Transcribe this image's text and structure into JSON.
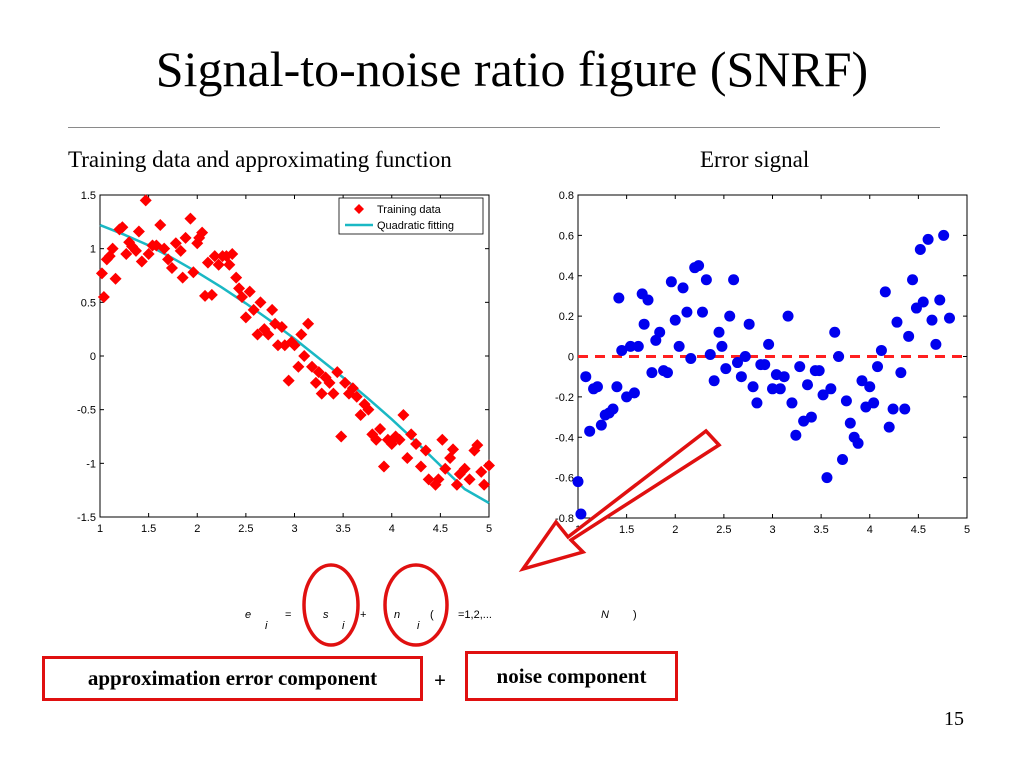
{
  "slide": {
    "title": "Signal-to-noise ratio figure (SNRF)",
    "left_subtitle": "Training data and approximating function",
    "right_subtitle": "Error signal",
    "page_number": "15"
  },
  "equation": {
    "lhs": "e",
    "lhs_sub": "i",
    "equals": "=",
    "s": "s",
    "s_sub": "i",
    "plus": "+",
    "n": "n",
    "n_sub": "i",
    "open_paren": "(",
    "index": "i",
    "range": "=1,2,...",
    "N": "N",
    "close_paren": ")"
  },
  "boxes": {
    "approx_label": "approximation error component",
    "plus": "+",
    "noise_label": "noise component"
  },
  "colors": {
    "training": "#ff0000",
    "fit": "#1ab8c4",
    "error": "#0000ee",
    "zero_line": "#ff2020",
    "annotation": "#e01010"
  },
  "chart_data": [
    {
      "type": "scatter",
      "xlim": [
        1,
        5
      ],
      "ylim": [
        -1.5,
        1.5
      ],
      "xticks": [
        "1",
        "1.5",
        "2",
        "2.5",
        "3",
        "3.5",
        "4",
        "4.5",
        "5"
      ],
      "yticks": [
        "1.5",
        "1",
        "0.5",
        "0",
        "-0.5",
        "-1",
        "-1.5"
      ],
      "legend_position": "top-right",
      "series": [
        {
          "name": "Training data",
          "marker": "diamond",
          "points": [
            [
              1.02,
              0.77
            ],
            [
              1.04,
              0.55
            ],
            [
              1.07,
              0.9
            ],
            [
              1.1,
              0.93
            ],
            [
              1.13,
              1.0
            ],
            [
              1.16,
              0.72
            ],
            [
              1.2,
              1.18
            ],
            [
              1.23,
              1.2
            ],
            [
              1.27,
              0.95
            ],
            [
              1.3,
              1.06
            ],
            [
              1.33,
              1.02
            ],
            [
              1.37,
              0.98
            ],
            [
              1.4,
              1.16
            ],
            [
              1.43,
              0.88
            ],
            [
              1.47,
              1.45
            ],
            [
              1.5,
              0.95
            ],
            [
              1.54,
              1.03
            ],
            [
              1.58,
              1.03
            ],
            [
              1.62,
              1.22
            ],
            [
              1.66,
              1.0
            ],
            [
              1.7,
              0.9
            ],
            [
              1.74,
              0.82
            ],
            [
              1.78,
              1.05
            ],
            [
              1.83,
              0.98
            ],
            [
              1.85,
              0.73
            ],
            [
              1.88,
              1.1
            ],
            [
              1.93,
              1.28
            ],
            [
              1.96,
              0.78
            ],
            [
              2.0,
              1.05
            ],
            [
              2.02,
              1.1
            ],
            [
              2.05,
              1.15
            ],
            [
              2.08,
              0.56
            ],
            [
              2.11,
              0.87
            ],
            [
              2.15,
              0.57
            ],
            [
              2.18,
              0.93
            ],
            [
              2.22,
              0.85
            ],
            [
              2.26,
              0.93
            ],
            [
              2.3,
              0.93
            ],
            [
              2.33,
              0.85
            ],
            [
              2.36,
              0.95
            ],
            [
              2.4,
              0.73
            ],
            [
              2.43,
              0.63
            ],
            [
              2.46,
              0.55
            ],
            [
              2.5,
              0.36
            ],
            [
              2.54,
              0.6
            ],
            [
              2.58,
              0.43
            ],
            [
              2.62,
              0.2
            ],
            [
              2.65,
              0.5
            ],
            [
              2.69,
              0.25
            ],
            [
              2.73,
              0.2
            ],
            [
              2.77,
              0.43
            ],
            [
              2.8,
              0.3
            ],
            [
              2.83,
              0.1
            ],
            [
              2.87,
              0.27
            ],
            [
              2.9,
              0.1
            ],
            [
              2.94,
              -0.23
            ],
            [
              2.97,
              0.13
            ],
            [
              3.0,
              0.1
            ],
            [
              3.04,
              -0.1
            ],
            [
              3.07,
              0.2
            ],
            [
              3.1,
              0.0
            ],
            [
              3.14,
              0.3
            ],
            [
              3.18,
              -0.1
            ],
            [
              3.22,
              -0.25
            ],
            [
              3.25,
              -0.15
            ],
            [
              3.28,
              -0.35
            ],
            [
              3.32,
              -0.2
            ],
            [
              3.36,
              -0.25
            ],
            [
              3.4,
              -0.35
            ],
            [
              3.44,
              -0.15
            ],
            [
              3.48,
              -0.75
            ],
            [
              3.52,
              -0.25
            ],
            [
              3.56,
              -0.35
            ],
            [
              3.6,
              -0.3
            ],
            [
              3.64,
              -0.38
            ],
            [
              3.68,
              -0.55
            ],
            [
              3.72,
              -0.45
            ],
            [
              3.76,
              -0.5
            ],
            [
              3.8,
              -0.73
            ],
            [
              3.84,
              -0.78
            ],
            [
              3.88,
              -0.68
            ],
            [
              3.92,
              -1.03
            ],
            [
              3.96,
              -0.78
            ],
            [
              4.0,
              -0.82
            ],
            [
              4.04,
              -0.75
            ],
            [
              4.08,
              -0.78
            ],
            [
              4.12,
              -0.55
            ],
            [
              4.16,
              -0.95
            ],
            [
              4.2,
              -0.73
            ],
            [
              4.25,
              -0.82
            ],
            [
              4.3,
              -1.03
            ],
            [
              4.35,
              -0.88
            ],
            [
              4.38,
              -1.15
            ],
            [
              4.45,
              -1.2
            ],
            [
              4.48,
              -1.15
            ],
            [
              4.52,
              -0.78
            ],
            [
              4.55,
              -1.05
            ],
            [
              4.6,
              -0.95
            ],
            [
              4.63,
              -0.87
            ],
            [
              4.67,
              -1.2
            ],
            [
              4.7,
              -1.1
            ],
            [
              4.75,
              -1.05
            ],
            [
              4.8,
              -1.15
            ],
            [
              4.85,
              -0.88
            ],
            [
              4.88,
              -0.83
            ],
            [
              4.92,
              -1.08
            ],
            [
              4.95,
              -1.2
            ],
            [
              5.0,
              -1.02
            ]
          ]
        },
        {
          "name": "Quadratic fitting",
          "marker": "line",
          "points": [
            [
              1,
              1.22
            ],
            [
              1.25,
              1.13
            ],
            [
              1.5,
              1.03
            ],
            [
              1.75,
              0.91
            ],
            [
              2,
              0.78
            ],
            [
              2.25,
              0.64
            ],
            [
              2.5,
              0.49
            ],
            [
              2.75,
              0.33
            ],
            [
              3,
              0.16
            ],
            [
              3.25,
              -0.02
            ],
            [
              3.5,
              -0.2
            ],
            [
              3.75,
              -0.39
            ],
            [
              4,
              -0.59
            ],
            [
              4.25,
              -0.8
            ],
            [
              4.5,
              -1.02
            ],
            [
              4.75,
              -1.24
            ],
            [
              5,
              -1.37
            ]
          ]
        }
      ]
    },
    {
      "type": "scatter",
      "xlim": [
        1,
        5
      ],
      "ylim": [
        -0.8,
        0.8
      ],
      "xticks": [
        "1",
        "1.5",
        "2",
        "2.5",
        "3",
        "3.5",
        "4",
        "4.5",
        "5"
      ],
      "yticks": [
        "0.8",
        "0.6",
        "0.4",
        "0.2",
        "0",
        "-0.2",
        "-0.4",
        "-0.6",
        "-0.8"
      ],
      "series": [
        {
          "name": "",
          "marker": "circle",
          "points": [
            [
              1.0,
              -0.62
            ],
            [
              1.03,
              -0.78
            ],
            [
              1.08,
              -0.1
            ],
            [
              1.12,
              -0.37
            ],
            [
              1.16,
              -0.16
            ],
            [
              1.2,
              -0.15
            ],
            [
              1.24,
              -0.34
            ],
            [
              1.28,
              -0.29
            ],
            [
              1.32,
              -0.28
            ],
            [
              1.36,
              -0.26
            ],
            [
              1.4,
              -0.15
            ],
            [
              1.42,
              0.29
            ],
            [
              1.45,
              0.03
            ],
            [
              1.5,
              -0.2
            ],
            [
              1.54,
              0.05
            ],
            [
              1.58,
              -0.18
            ],
            [
              1.62,
              0.05
            ],
            [
              1.66,
              0.31
            ],
            [
              1.68,
              0.16
            ],
            [
              1.72,
              0.28
            ],
            [
              1.76,
              -0.08
            ],
            [
              1.8,
              0.08
            ],
            [
              1.84,
              0.12
            ],
            [
              1.88,
              -0.07
            ],
            [
              1.92,
              -0.08
            ],
            [
              1.96,
              0.37
            ],
            [
              2.0,
              0.18
            ],
            [
              2.04,
              0.05
            ],
            [
              2.08,
              0.34
            ],
            [
              2.12,
              0.22
            ],
            [
              2.16,
              -0.01
            ],
            [
              2.2,
              0.44
            ],
            [
              2.24,
              0.45
            ],
            [
              2.28,
              0.22
            ],
            [
              2.32,
              0.38
            ],
            [
              2.36,
              0.01
            ],
            [
              2.4,
              -0.12
            ],
            [
              2.45,
              0.12
            ],
            [
              2.48,
              0.05
            ],
            [
              2.52,
              -0.06
            ],
            [
              2.56,
              0.2
            ],
            [
              2.6,
              0.38
            ],
            [
              2.64,
              -0.03
            ],
            [
              2.68,
              -0.1
            ],
            [
              2.72,
              0.0
            ],
            [
              2.76,
              0.16
            ],
            [
              2.8,
              -0.15
            ],
            [
              2.84,
              -0.23
            ],
            [
              2.88,
              -0.04
            ],
            [
              2.92,
              -0.04
            ],
            [
              2.96,
              0.06
            ],
            [
              3.0,
              -0.16
            ],
            [
              3.04,
              -0.09
            ],
            [
              3.08,
              -0.16
            ],
            [
              3.12,
              -0.1
            ],
            [
              3.16,
              0.2
            ],
            [
              3.2,
              -0.23
            ],
            [
              3.24,
              -0.39
            ],
            [
              3.28,
              -0.05
            ],
            [
              3.32,
              -0.32
            ],
            [
              3.36,
              -0.14
            ],
            [
              3.4,
              -0.3
            ],
            [
              3.44,
              -0.07
            ],
            [
              3.48,
              -0.07
            ],
            [
              3.52,
              -0.19
            ],
            [
              3.56,
              -0.6
            ],
            [
              3.6,
              -0.16
            ],
            [
              3.64,
              0.12
            ],
            [
              3.68,
              0.0
            ],
            [
              3.72,
              -0.51
            ],
            [
              3.76,
              -0.22
            ],
            [
              3.8,
              -0.33
            ],
            [
              3.84,
              -0.4
            ],
            [
              3.88,
              -0.43
            ],
            [
              3.92,
              -0.12
            ],
            [
              3.96,
              -0.25
            ],
            [
              4.0,
              -0.15
            ],
            [
              4.04,
              -0.23
            ],
            [
              4.08,
              -0.05
            ],
            [
              4.12,
              0.03
            ],
            [
              4.16,
              0.32
            ],
            [
              4.2,
              -0.35
            ],
            [
              4.24,
              -0.26
            ],
            [
              4.28,
              0.17
            ],
            [
              4.32,
              -0.08
            ],
            [
              4.36,
              -0.26
            ],
            [
              4.4,
              0.1
            ],
            [
              4.44,
              0.38
            ],
            [
              4.48,
              0.24
            ],
            [
              4.52,
              0.53
            ],
            [
              4.55,
              0.27
            ],
            [
              4.6,
              0.58
            ],
            [
              4.64,
              0.18
            ],
            [
              4.68,
              0.06
            ],
            [
              4.72,
              0.28
            ],
            [
              4.76,
              0.6
            ],
            [
              4.82,
              0.19
            ]
          ]
        },
        {
          "name": "",
          "marker": "dashed-line",
          "points": [
            [
              1,
              0
            ],
            [
              5,
              0
            ]
          ]
        }
      ]
    }
  ]
}
